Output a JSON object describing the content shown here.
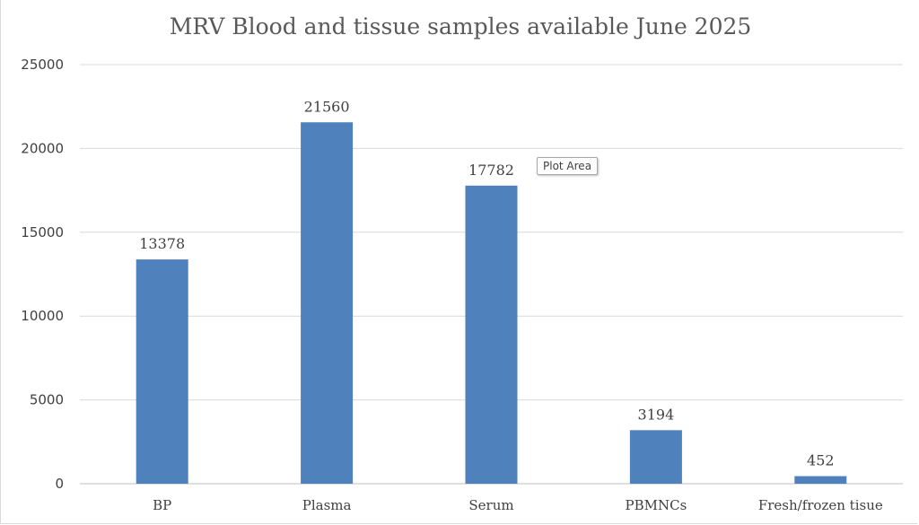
{
  "chart_data": {
    "type": "bar",
    "title": "MRV Blood and tissue samples available June 2025",
    "categories": [
      "BP",
      "Plasma",
      "Serum",
      "PBMNCs",
      "Fresh/frozen tisue"
    ],
    "values": [
      13378,
      21560,
      17782,
      3194,
      452
    ],
    "xlabel": "",
    "ylabel": "",
    "ylim": [
      0,
      25000
    ],
    "yticks": [
      0,
      5000,
      10000,
      15000,
      20000,
      25000
    ],
    "grid": true,
    "legend": "none",
    "bar_color": "#4f81bd"
  },
  "tooltip": {
    "text": "Plot Area"
  }
}
